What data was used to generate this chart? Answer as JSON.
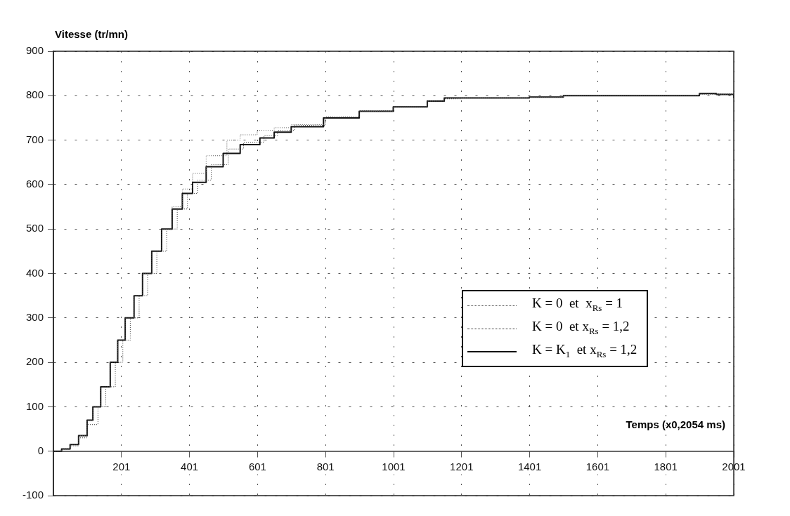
{
  "chart_data": {
    "type": "step",
    "ylabel": "Vitesse (tr/mn)",
    "xlabel": "Temps (x0,2054 ms)",
    "xlim": [
      1,
      2001
    ],
    "xticks": [
      201,
      401,
      601,
      801,
      1001,
      1201,
      1401,
      1601,
      1801,
      2001
    ],
    "ylim": [
      -100,
      900
    ],
    "yticks": [
      -100,
      0,
      100,
      200,
      300,
      400,
      500,
      600,
      700,
      800,
      900
    ],
    "grid": true,
    "legend": "right",
    "marker": "none",
    "series": [
      {
        "name": "K = 0  et  x$_{Rs}$ = 1",
        "color": "#555555",
        "line_style": "dotted",
        "x": [
          1,
          25,
          50,
          75,
          100,
          117,
          140,
          168,
          190,
          212,
          238,
          263,
          290,
          319,
          350,
          380,
          410,
          450,
          511,
          550,
          600,
          650,
          700,
          800,
          900,
          1000,
          1100,
          1150,
          1200,
          1300,
          1400,
          1500,
          1600,
          1700,
          1800,
          1900,
          2001
        ],
        "values": [
          0,
          5,
          15,
          35,
          70,
          100,
          145,
          200,
          250,
          300,
          350,
          400,
          450,
          500,
          550,
          590,
          625,
          665,
          700,
          712,
          722,
          728,
          735,
          752,
          765,
          775,
          788,
          795,
          795,
          795,
          797,
          800,
          800,
          800,
          800,
          803,
          795
        ]
      },
      {
        "name": "K = 0  et x$_{Rs}$ = 1,2",
        "color": "#333333",
        "line_style": "dotted",
        "x": [
          1,
          25,
          50,
          75,
          100,
          132,
          155,
          183,
          205,
          227,
          253,
          278,
          305,
          334,
          365,
          395,
          425,
          465,
          515,
          560,
          620,
          660,
          710,
          800,
          900,
          1000,
          1100,
          1150,
          1200,
          1300,
          1400,
          1500,
          1600,
          1700,
          1800,
          1900,
          2001
        ],
        "values": [
          0,
          4,
          12,
          30,
          60,
          100,
          145,
          200,
          250,
          300,
          350,
          400,
          450,
          500,
          545,
          580,
          610,
          645,
          680,
          695,
          710,
          722,
          733,
          752,
          766,
          776,
          788,
          793,
          795,
          795,
          797,
          800,
          800,
          800,
          800,
          804,
          795
        ]
      },
      {
        "name": "K = K$_{1}$  et x$_{Rs}$ = 1,2",
        "color": "#111111",
        "line_style": "solid",
        "x": [
          1,
          25,
          50,
          75,
          100,
          117,
          140,
          168,
          190,
          212,
          238,
          263,
          290,
          319,
          350,
          380,
          410,
          450,
          500,
          550,
          608,
          650,
          700,
          795,
          900,
          1000,
          1100,
          1150,
          1200,
          1300,
          1400,
          1500,
          1600,
          1700,
          1800,
          1900,
          1950,
          2001
        ],
        "values": [
          0,
          5,
          15,
          35,
          70,
          100,
          145,
          200,
          250,
          300,
          350,
          400,
          450,
          500,
          545,
          580,
          605,
          640,
          670,
          690,
          705,
          718,
          730,
          750,
          765,
          775,
          788,
          795,
          795,
          795,
          797,
          800,
          800,
          800,
          800,
          805,
          803,
          795
        ]
      }
    ]
  }
}
